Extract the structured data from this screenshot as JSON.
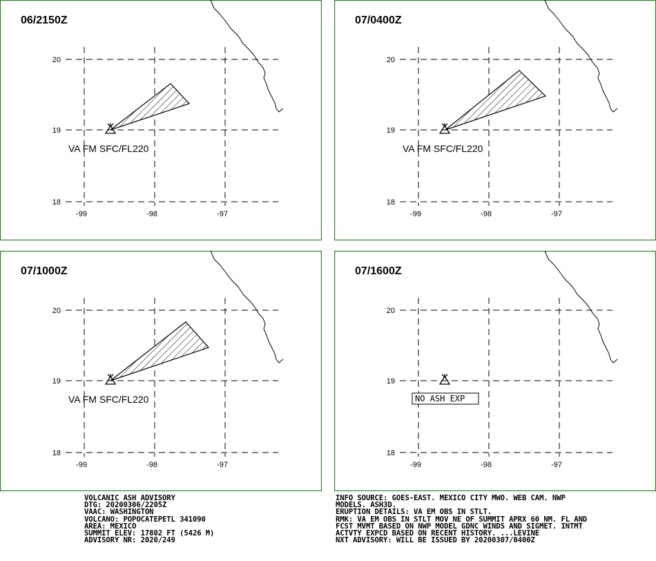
{
  "panels": [
    {
      "title": "06/2150Z",
      "vafm_label": "VA FM SFC/FL220",
      "no_ash_label": null,
      "plume": "a"
    },
    {
      "title": "07/0400Z",
      "vafm_label": "VA FM SFC/FL220",
      "no_ash_label": null,
      "plume": "b"
    },
    {
      "title": "07/1000Z",
      "vafm_label": "VA FM SFC/FL220",
      "no_ash_label": null,
      "plume": "c"
    },
    {
      "title": "07/1600Z",
      "vafm_label": null,
      "no_ash_label": "NO ASH EXP",
      "plume": null
    }
  ],
  "axis": {
    "lat_labels": [
      "20",
      "19",
      "18"
    ],
    "lon_labels": [
      "-99",
      "-98",
      "-97"
    ]
  },
  "advisory_left": [
    "VOLCANIC ASH ADVISORY",
    "DTG: 20200306/2205Z",
    "VAAC: WASHINGTON",
    "VOLCANO: POPOCATEPETL 341090",
    "AREA: MEXICO",
    "SUMMIT ELEV: 17802 FT (5426 M)",
    "ADVISORY NR: 2020/249"
  ],
  "advisory_right": [
    "INFO SOURCE: GOES-EAST. MEXICO CITY MWO. WEB CAM. NWP",
    "MODELS. ASH3D.",
    "ERUPTION DETAILS: VA EM OBS IN STLT.",
    "RMK: VA EM OBS IN STLT MOV NE OF SUMMIT APRX 60 NM. FL AND",
    "FCST MVMT BASED ON NWP MODEL GDNC WINDS AND SIGMET. INTMT",
    "ACTVTY EXPCD BASED ON RECENT HISTORY. ...LEVINE",
    "NXT ADVISORY: WILL BE ISSUED BY 20200307/0400Z"
  ],
  "colors": {
    "frame": "#2e8b2e"
  }
}
